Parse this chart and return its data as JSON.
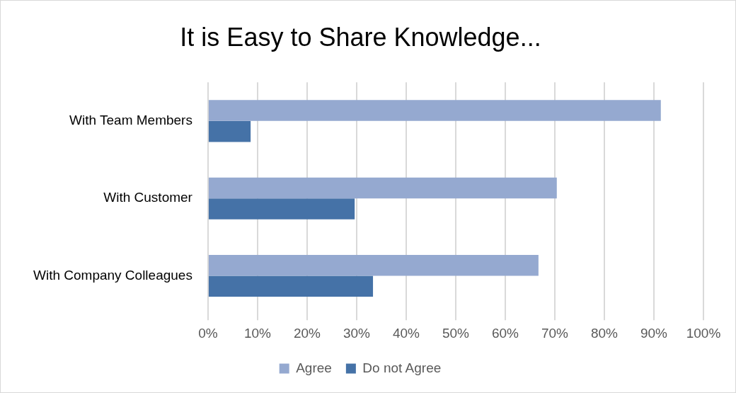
{
  "chart_data": {
    "type": "bar",
    "orientation": "horizontal",
    "title": "It is Easy to Share Knowledge...",
    "categories": [
      "With Team Members",
      "With Customer",
      "With Company Colleagues"
    ],
    "series": [
      {
        "name": "Agree",
        "color": "#95a9d0",
        "values": [
          91.4,
          70.4,
          66.7
        ]
      },
      {
        "name": "Do not Agree",
        "color": "#4572a7",
        "values": [
          8.6,
          29.6,
          33.3
        ]
      }
    ],
    "xlim": [
      0,
      100
    ],
    "xticks": [
      {
        "value": 0,
        "label": "0%"
      },
      {
        "value": 10,
        "label": "10%"
      },
      {
        "value": 20,
        "label": "20%"
      },
      {
        "value": 30,
        "label": "30%"
      },
      {
        "value": 40,
        "label": "40%"
      },
      {
        "value": 50,
        "label": "50%"
      },
      {
        "value": 60,
        "label": "60%"
      },
      {
        "value": 70,
        "label": "70%"
      },
      {
        "value": 80,
        "label": "80%"
      },
      {
        "value": 90,
        "label": "90%"
      },
      {
        "value": 100,
        "label": "100%"
      }
    ],
    "grid": "x",
    "legend": "bottom"
  }
}
